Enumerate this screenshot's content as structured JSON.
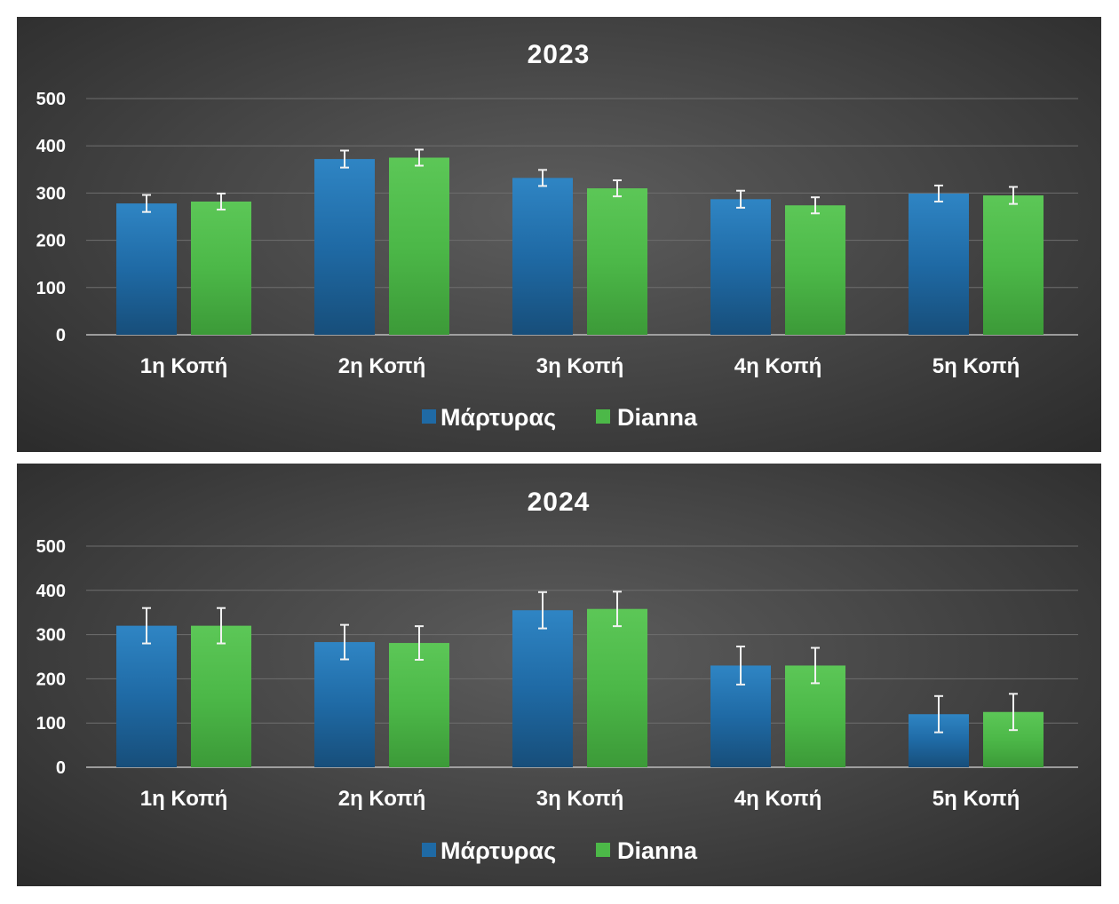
{
  "colors": {
    "series_0": "#1f6aa5",
    "series_0_light": "#2f85c4",
    "series_0_dark": "#174e7a",
    "series_1": "#4cb848",
    "series_1_light": "#5cc757",
    "series_1_dark": "#3c9a38"
  },
  "chart_data": [
    {
      "type": "bar",
      "title": "2023",
      "categories": [
        "1η Κοπή",
        "2η Κοπή",
        "3η Κοπή",
        "4η Κοπή",
        "5η Κοπή"
      ],
      "series": [
        {
          "name": "Μάρτυρας",
          "values": [
            278,
            372,
            332,
            287,
            299
          ],
          "errors": [
            18,
            18,
            17,
            18,
            17
          ]
        },
        {
          "name": "Dianna",
          "values": [
            282,
            375,
            310,
            274,
            295
          ],
          "errors": [
            17,
            17,
            17,
            17,
            18
          ]
        }
      ],
      "yticks": [
        "0",
        "100",
        "200",
        "300",
        "400",
        "500"
      ],
      "ylim": [
        0,
        500
      ],
      "xlabel": "",
      "ylabel": "",
      "grid": true,
      "legend": "bottom-center"
    },
    {
      "type": "bar",
      "title": "2024",
      "categories": [
        "1η Κοπή",
        "2η Κοπή",
        "3η Κοπή",
        "4η Κοπή",
        "5η Κοπή"
      ],
      "series": [
        {
          "name": "Μάρτυρας",
          "values": [
            320,
            283,
            355,
            230,
            120
          ],
          "errors": [
            40,
            39,
            41,
            43,
            41
          ]
        },
        {
          "name": "Dianna",
          "values": [
            320,
            281,
            358,
            230,
            125
          ],
          "errors": [
            40,
            38,
            39,
            40,
            41
          ]
        }
      ],
      "yticks": [
        "0",
        "100",
        "200",
        "300",
        "400",
        "500"
      ],
      "ylim": [
        0,
        500
      ],
      "xlabel": "",
      "ylabel": "",
      "grid": true,
      "legend": "bottom-center"
    }
  ]
}
